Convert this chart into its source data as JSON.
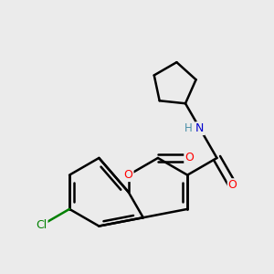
{
  "background_color": "#ebebeb",
  "bond_color": "#000000",
  "bond_width": 1.8,
  "atom_colors": {
    "O": "#ff0000",
    "N": "#0000cd",
    "Cl": "#008000",
    "H": "#4a8fa8"
  },
  "figsize": [
    3.0,
    3.0
  ],
  "dpi": 100
}
